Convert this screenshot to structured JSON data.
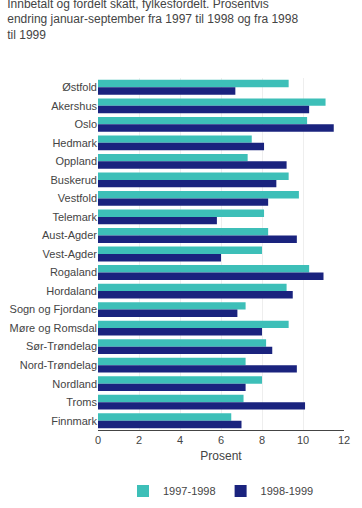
{
  "chart_data": {
    "type": "bar",
    "orientation": "horizontal",
    "title": "Innbetalt og fordelt skatt, fylkesfordelt. Prosentvis\nendring januar-september fra 1997 til 1998 og fra 1998\ntil 1999",
    "categories": [
      "Østfold",
      "Akershus",
      "Oslo",
      "Hedmark",
      "Oppland",
      "Buskerud",
      "Vestfold",
      "Telemark",
      "Aust-Agder",
      "Vest-Agder",
      "Rogaland",
      "Hordaland",
      "Sogn og Fjordane",
      "Møre og Romsdal",
      "Sør-Trøndelag",
      "Nord-Trøndelag",
      "Nordland",
      "Troms",
      "Finnmark"
    ],
    "series": [
      {
        "name": "1997-1998",
        "color": "#3dbfb8",
        "values": [
          9.3,
          11.1,
          10.2,
          7.5,
          7.3,
          9.3,
          9.8,
          8.1,
          8.3,
          8.0,
          10.3,
          9.2,
          7.2,
          9.3,
          8.2,
          7.2,
          8.0,
          7.1,
          6.5
        ]
      },
      {
        "name": "1998-1999",
        "color": "#1a237e",
        "values": [
          6.7,
          10.3,
          11.5,
          8.1,
          9.2,
          8.7,
          8.3,
          5.8,
          9.7,
          6.0,
          11.0,
          9.5,
          6.8,
          8.0,
          8.5,
          9.7,
          7.2,
          10.1,
          7.0
        ]
      }
    ],
    "xlabel": "Prosent",
    "xlim": [
      0,
      12
    ],
    "xticks": [
      0,
      2,
      4,
      6,
      8,
      10,
      12
    ],
    "grid": true,
    "legend": "bottom"
  }
}
